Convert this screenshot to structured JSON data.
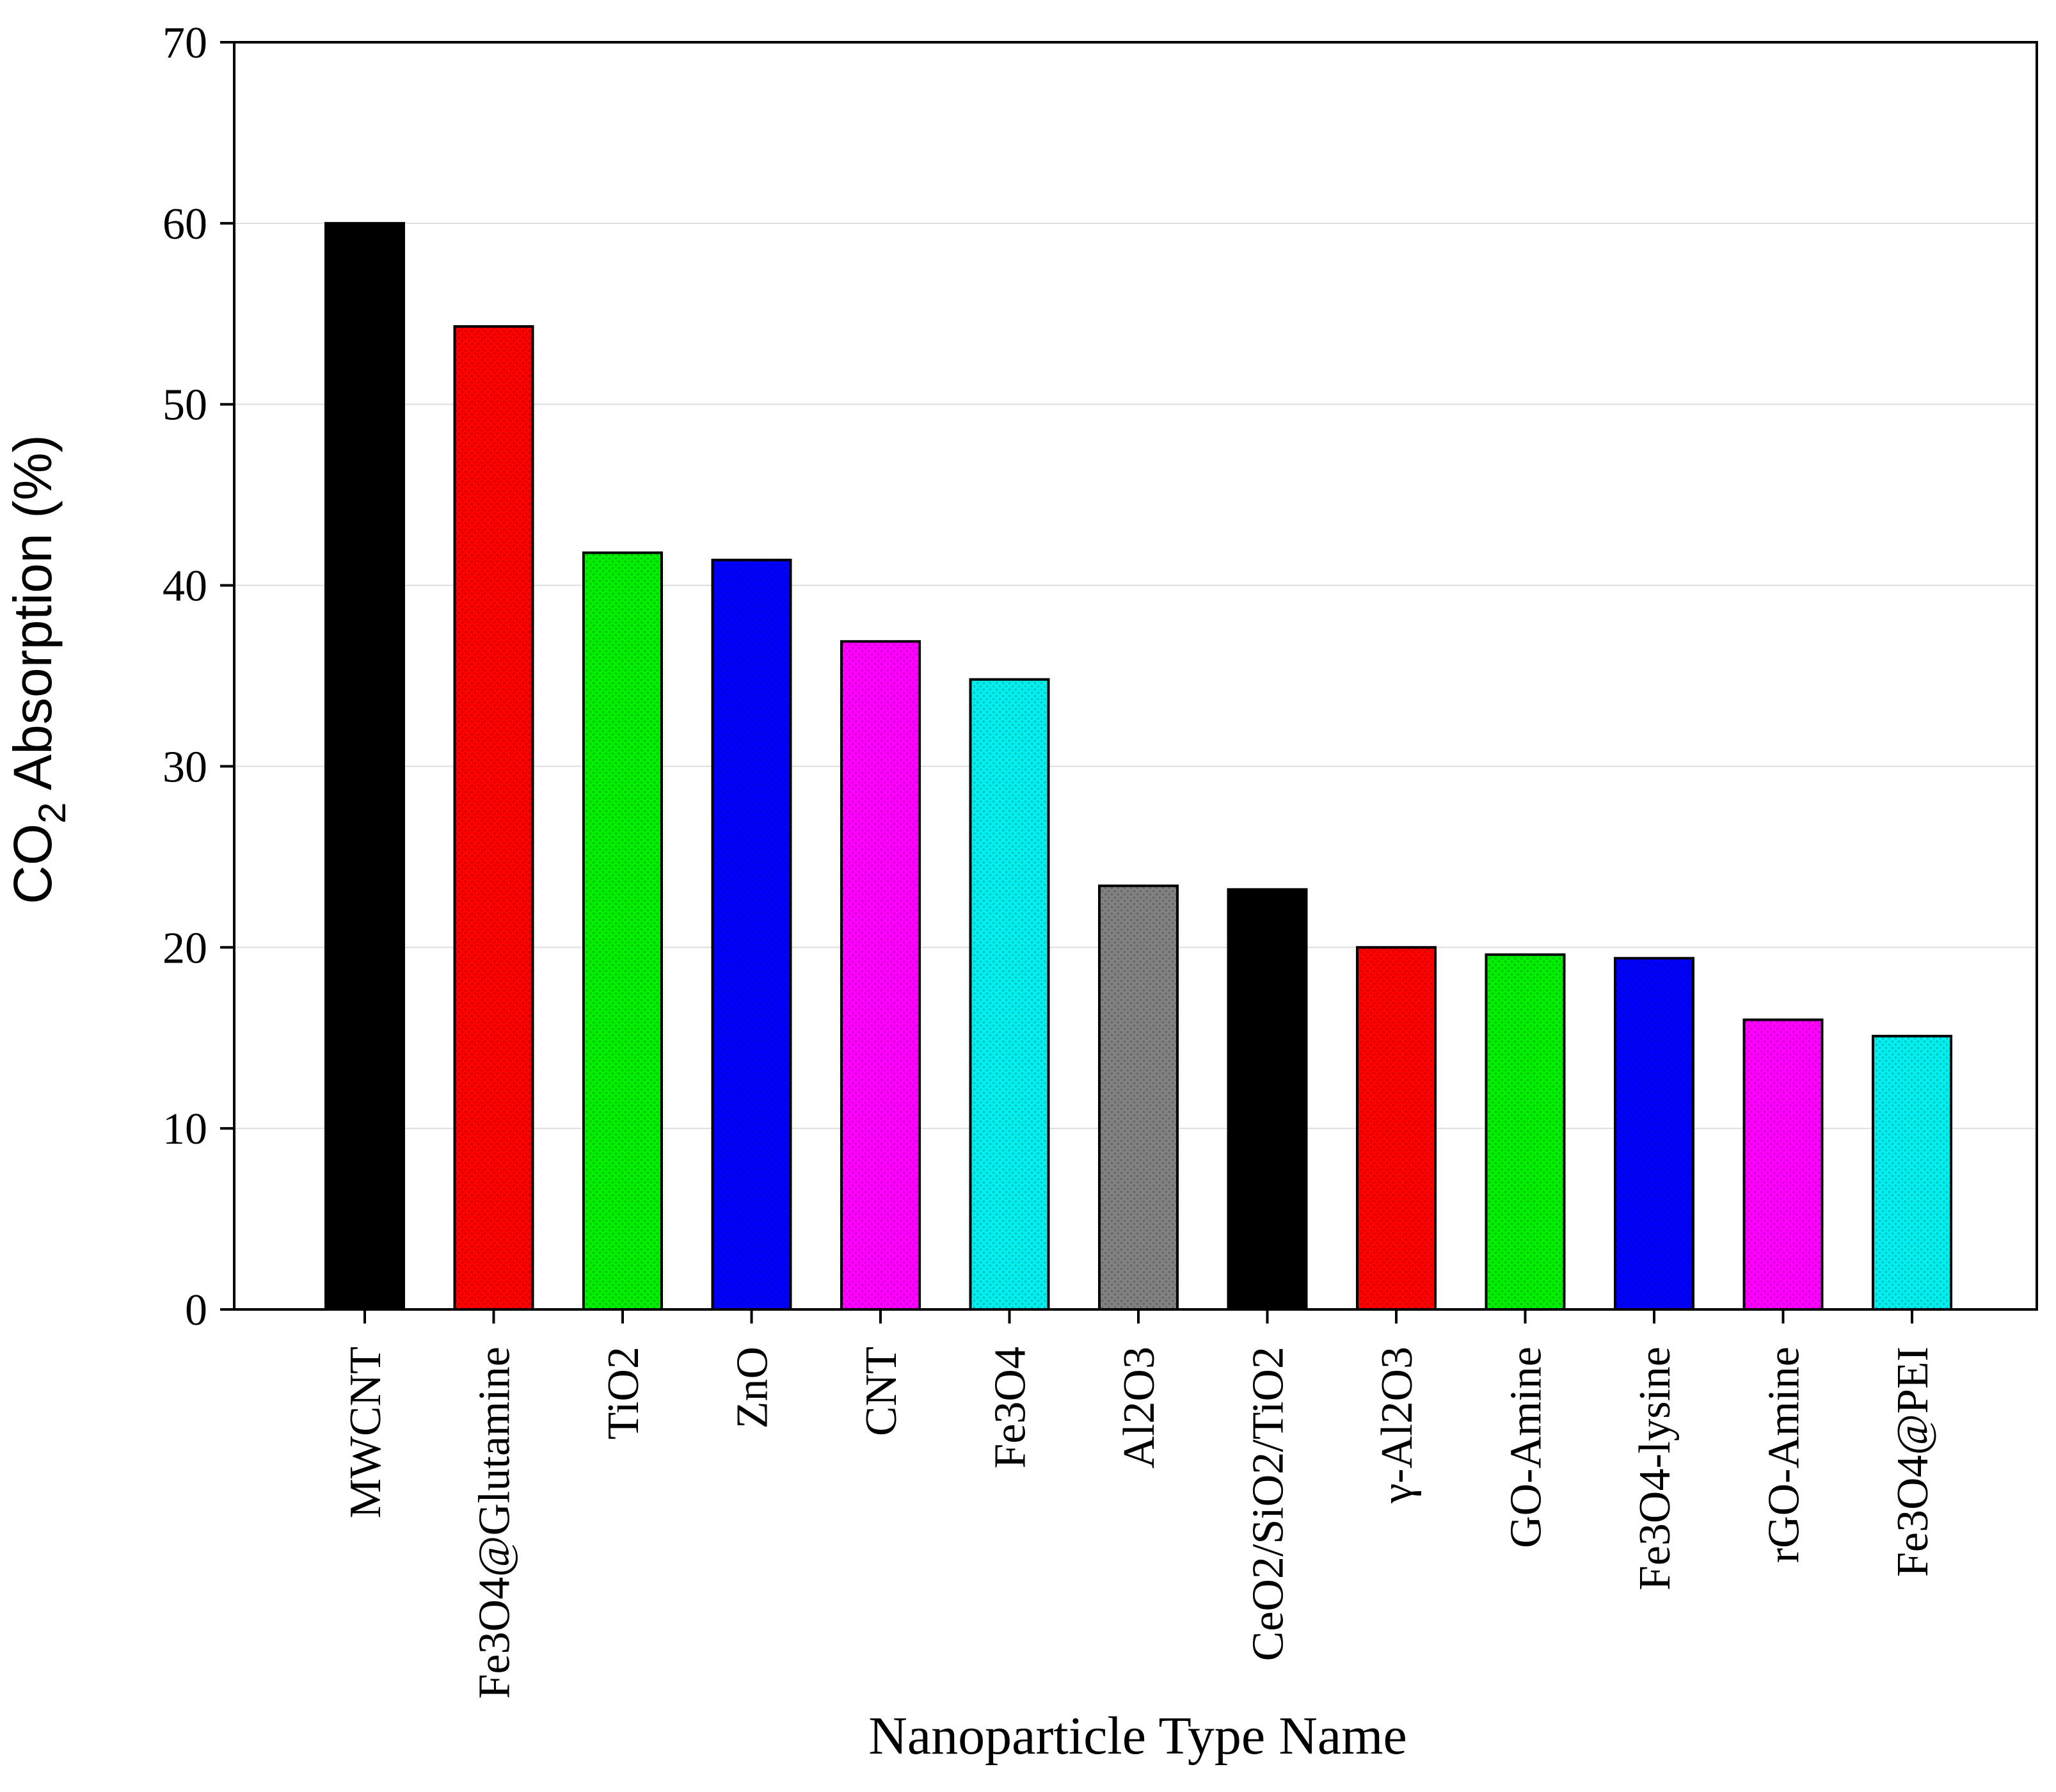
{
  "chart_data": {
    "type": "bar",
    "xlabel": "Nanoparticle Type Name",
    "ylabel": "CO2 Absorption (%)",
    "ylabel_parts": {
      "main": "CO",
      "sub": "2",
      "rest": " Absorption (%)"
    },
    "ylim": [
      0,
      70
    ],
    "yticks": [
      0,
      10,
      20,
      30,
      40,
      50,
      60,
      70
    ],
    "grid": true,
    "legend": "none",
    "categories": [
      "MWCNT",
      "Fe3O4@Glutamine",
      "TiO2",
      "ZnO",
      "CNT",
      "Fe3O4",
      "Al2O3",
      "CeO2/SiO2/TiO2",
      "γ-Al2O3",
      "GO-Amine",
      "Fe3O4-lysine",
      "rGO-Amine",
      "Fe3O4@PEI"
    ],
    "values": [
      60,
      54.3,
      41.8,
      41.4,
      36.9,
      34.8,
      23.4,
      23.2,
      20,
      19.6,
      19.4,
      16,
      15.1
    ],
    "colors": [
      "#000000",
      "#ff0000",
      "#00ee00",
      "#0000ff",
      "#ff00ff",
      "#00eeee",
      "#808080",
      "#000000",
      "#ff0000",
      "#00ee00",
      "#0000ff",
      "#ff00ff",
      "#00eeee"
    ],
    "pattern": "dotted-fill"
  }
}
